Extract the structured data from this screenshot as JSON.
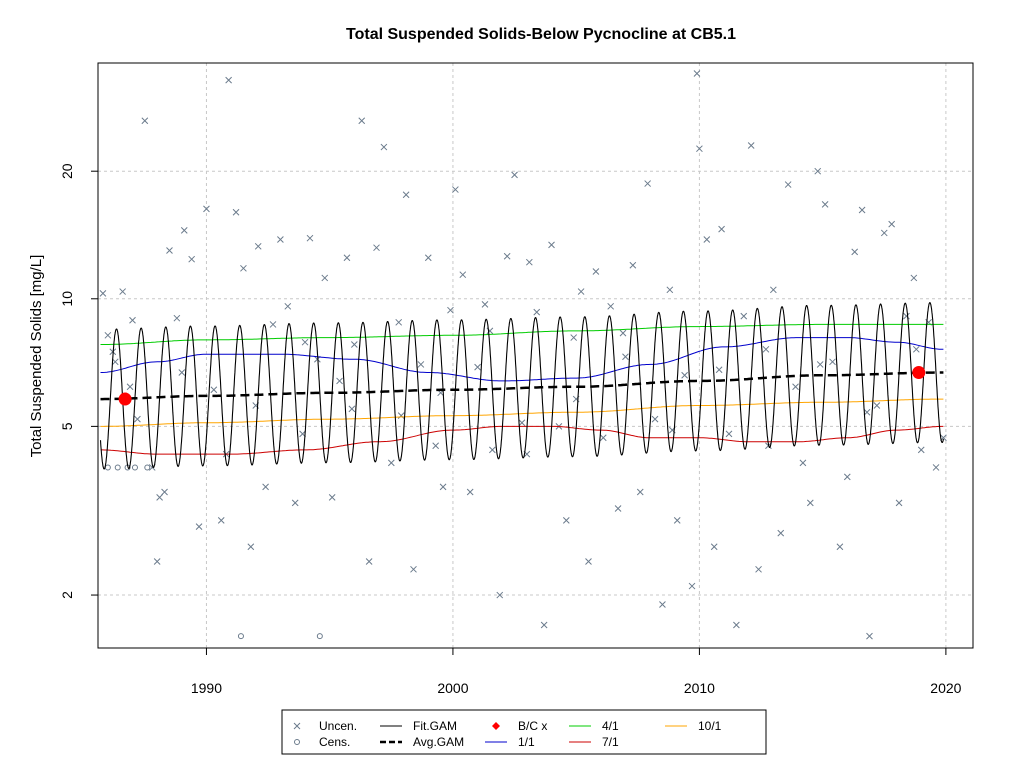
{
  "chart_data": {
    "type": "line",
    "title": "Total Suspended Solids-Below Pycnocline at CB5.1",
    "xlabel": "",
    "ylabel": "Total Suspended Solids [mg/L]",
    "xlim": [
      1985.6,
      2021.1
    ],
    "ylim": [
      1.5,
      36
    ],
    "y_scale": "log",
    "grid": true,
    "legend_position": "bottom",
    "x_ticks": [
      1990,
      2000,
      2010,
      2020
    ],
    "y_ticks": [
      2,
      5,
      10,
      20
    ],
    "x_tick_labels": [
      "1990",
      "2000",
      "2010",
      "2020"
    ],
    "y_tick_labels": [
      "2",
      "5",
      "10",
      "20"
    ],
    "legend": [
      {
        "label": "Uncen.",
        "symbol": "x",
        "color": "#6b7b8c"
      },
      {
        "label": "Cens.",
        "symbol": "circle",
        "color": "#6b7b8c"
      },
      {
        "label": "Fit.GAM",
        "symbol": "line",
        "color": "#000000"
      },
      {
        "label": "Avg.GAM",
        "symbol": "dashed",
        "color": "#000000"
      },
      {
        "label": "B/C x",
        "symbol": "diamond",
        "color": "#ff0000"
      },
      {
        "label": "1/1",
        "symbol": "line",
        "color": "#0000cc"
      },
      {
        "label": "4/1",
        "symbol": "line",
        "color": "#00cc00"
      },
      {
        "label": "7/1",
        "symbol": "line",
        "color": "#cc0000"
      },
      {
        "label": "10/1",
        "symbol": "line",
        "color": "#ffa500"
      }
    ],
    "series": [
      {
        "name": "Avg.GAM",
        "x": [
          1985.7,
          1990,
          1995,
          2000,
          2005,
          2010,
          2015,
          2019.9
        ],
        "y": [
          5.8,
          5.9,
          6.0,
          6.1,
          6.2,
          6.4,
          6.6,
          6.7
        ]
      },
      {
        "name": "1/1",
        "x": [
          1985.7,
          1988,
          1990,
          1993,
          1996,
          1999,
          2002,
          2005,
          2008,
          2011,
          2014,
          2016,
          2018,
          2019.9
        ],
        "y": [
          6.7,
          7.1,
          7.4,
          7.4,
          7.2,
          6.7,
          6.4,
          6.5,
          7.0,
          7.7,
          8.1,
          8.1,
          7.9,
          7.6
        ]
      },
      {
        "name": "4/1",
        "x": [
          1985.7,
          1990,
          1995,
          2000,
          2005,
          2010,
          2015,
          2019.9
        ],
        "y": [
          7.8,
          8.0,
          8.1,
          8.2,
          8.4,
          8.6,
          8.7,
          8.7
        ]
      },
      {
        "name": "7/1",
        "x": [
          1985.7,
          1988,
          1991,
          1994,
          1997,
          2000,
          2002,
          2004,
          2006,
          2008,
          2010,
          2012,
          2014,
          2016,
          2018,
          2019.9
        ],
        "y": [
          4.4,
          4.3,
          4.3,
          4.4,
          4.6,
          4.9,
          5.0,
          5.0,
          4.9,
          4.7,
          4.7,
          4.6,
          4.6,
          4.7,
          4.9,
          5.0
        ]
      },
      {
        "name": "10/1",
        "x": [
          1985.7,
          1990,
          1995,
          2000,
          2005,
          2010,
          2015,
          2019.9
        ],
        "y": [
          5.0,
          5.1,
          5.2,
          5.3,
          5.4,
          5.6,
          5.7,
          5.8
        ]
      },
      {
        "name": "Fit.GAM",
        "kind": "seasonal",
        "x_start": 1985.7,
        "x_end": 2019.9,
        "peak_phase": 0.35,
        "amplitude_log": 0.38
      }
    ],
    "points_bc": [
      {
        "x": 1986.7,
        "y": 5.8
      },
      {
        "x": 2018.9,
        "y": 6.7
      }
    ],
    "censored_points": [
      {
        "x": 1986.0,
        "y": 4.0
      },
      {
        "x": 1986.4,
        "y": 4.0
      },
      {
        "x": 1986.8,
        "y": 4.0
      },
      {
        "x": 1987.1,
        "y": 4.0
      },
      {
        "x": 1987.6,
        "y": 4.0
      },
      {
        "x": 1991.4,
        "y": 1.6
      },
      {
        "x": 1994.6,
        "y": 1.6
      }
    ],
    "uncensored_points": [
      {
        "x": 1985.8,
        "y": 10.3
      },
      {
        "x": 1986.0,
        "y": 8.2
      },
      {
        "x": 1986.3,
        "y": 7.1
      },
      {
        "x": 1986.6,
        "y": 10.4
      },
      {
        "x": 1986.9,
        "y": 6.2
      },
      {
        "x": 1987.2,
        "y": 5.2
      },
      {
        "x": 1987.5,
        "y": 26.3
      },
      {
        "x": 1987.8,
        "y": 4.0
      },
      {
        "x": 1988.0,
        "y": 2.4
      },
      {
        "x": 1988.3,
        "y": 3.5
      },
      {
        "x": 1988.5,
        "y": 13.0
      },
      {
        "x": 1988.8,
        "y": 9.0
      },
      {
        "x": 1989.1,
        "y": 14.5
      },
      {
        "x": 1989.4,
        "y": 12.4
      },
      {
        "x": 1989.7,
        "y": 2.9
      },
      {
        "x": 1990.0,
        "y": 16.3
      },
      {
        "x": 1990.3,
        "y": 6.1
      },
      {
        "x": 1990.6,
        "y": 3.0
      },
      {
        "x": 1990.9,
        "y": 32.8
      },
      {
        "x": 1991.2,
        "y": 16.0
      },
      {
        "x": 1991.5,
        "y": 11.8
      },
      {
        "x": 1991.8,
        "y": 2.6
      },
      {
        "x": 1992.1,
        "y": 13.3
      },
      {
        "x": 1992.4,
        "y": 3.6
      },
      {
        "x": 1992.7,
        "y": 8.7
      },
      {
        "x": 1993.0,
        "y": 13.8
      },
      {
        "x": 1993.3,
        "y": 9.6
      },
      {
        "x": 1993.6,
        "y": 3.3
      },
      {
        "x": 1993.9,
        "y": 4.8
      },
      {
        "x": 1994.2,
        "y": 13.9
      },
      {
        "x": 1994.5,
        "y": 7.2
      },
      {
        "x": 1994.8,
        "y": 11.2
      },
      {
        "x": 1995.1,
        "y": 3.4
      },
      {
        "x": 1995.4,
        "y": 6.4
      },
      {
        "x": 1995.7,
        "y": 12.5
      },
      {
        "x": 1996.0,
        "y": 7.8
      },
      {
        "x": 1996.3,
        "y": 26.3
      },
      {
        "x": 1996.6,
        "y": 2.4
      },
      {
        "x": 1996.9,
        "y": 13.2
      },
      {
        "x": 1997.2,
        "y": 22.8
      },
      {
        "x": 1997.5,
        "y": 4.1
      },
      {
        "x": 1997.8,
        "y": 8.8
      },
      {
        "x": 1998.1,
        "y": 17.6
      },
      {
        "x": 1998.4,
        "y": 2.3
      },
      {
        "x": 1998.7,
        "y": 7.0
      },
      {
        "x": 1999.0,
        "y": 12.5
      },
      {
        "x": 1999.3,
        "y": 4.5
      },
      {
        "x": 1999.6,
        "y": 3.6
      },
      {
        "x": 1999.9,
        "y": 9.4
      },
      {
        "x": 2000.1,
        "y": 18.1
      },
      {
        "x": 2000.4,
        "y": 11.4
      },
      {
        "x": 2000.7,
        "y": 3.5
      },
      {
        "x": 2001.0,
        "y": 6.9
      },
      {
        "x": 2001.3,
        "y": 9.7
      },
      {
        "x": 2001.6,
        "y": 4.4
      },
      {
        "x": 2001.9,
        "y": 2.0
      },
      {
        "x": 2002.2,
        "y": 12.6
      },
      {
        "x": 2002.5,
        "y": 19.6
      },
      {
        "x": 2002.8,
        "y": 5.1
      },
      {
        "x": 2003.1,
        "y": 12.2
      },
      {
        "x": 2003.4,
        "y": 9.3
      },
      {
        "x": 2003.7,
        "y": 1.7
      },
      {
        "x": 2004.0,
        "y": 13.4
      },
      {
        "x": 2004.3,
        "y": 5.0
      },
      {
        "x": 2004.6,
        "y": 3.0
      },
      {
        "x": 2004.9,
        "y": 8.1
      },
      {
        "x": 2005.2,
        "y": 10.4
      },
      {
        "x": 2005.5,
        "y": 2.4
      },
      {
        "x": 2005.8,
        "y": 11.6
      },
      {
        "x": 2006.1,
        "y": 4.7
      },
      {
        "x": 2006.4,
        "y": 9.6
      },
      {
        "x": 2006.7,
        "y": 3.2
      },
      {
        "x": 2007.0,
        "y": 7.3
      },
      {
        "x": 2007.3,
        "y": 12.0
      },
      {
        "x": 2007.6,
        "y": 3.5
      },
      {
        "x": 2007.9,
        "y": 18.7
      },
      {
        "x": 2008.2,
        "y": 5.2
      },
      {
        "x": 2008.5,
        "y": 1.9
      },
      {
        "x": 2008.8,
        "y": 10.5
      },
      {
        "x": 2009.1,
        "y": 3.0
      },
      {
        "x": 2009.4,
        "y": 6.6
      },
      {
        "x": 2009.7,
        "y": 2.1
      },
      {
        "x": 2009.9,
        "y": 34.0
      },
      {
        "x": 2010.0,
        "y": 22.6
      },
      {
        "x": 2010.3,
        "y": 13.8
      },
      {
        "x": 2010.6,
        "y": 2.6
      },
      {
        "x": 2010.9,
        "y": 14.6
      },
      {
        "x": 2011.2,
        "y": 4.8
      },
      {
        "x": 2011.5,
        "y": 1.7
      },
      {
        "x": 2011.8,
        "y": 9.1
      },
      {
        "x": 2012.1,
        "y": 23.0
      },
      {
        "x": 2012.4,
        "y": 2.3
      },
      {
        "x": 2012.7,
        "y": 7.6
      },
      {
        "x": 2013.0,
        "y": 10.5
      },
      {
        "x": 2013.3,
        "y": 2.8
      },
      {
        "x": 2013.6,
        "y": 18.6
      },
      {
        "x": 2013.9,
        "y": 6.2
      },
      {
        "x": 2014.2,
        "y": 4.1
      },
      {
        "x": 2014.5,
        "y": 3.3
      },
      {
        "x": 2014.8,
        "y": 20.0
      },
      {
        "x": 2015.1,
        "y": 16.7
      },
      {
        "x": 2015.4,
        "y": 7.1
      },
      {
        "x": 2015.7,
        "y": 2.6
      },
      {
        "x": 2016.0,
        "y": 3.8
      },
      {
        "x": 2016.3,
        "y": 12.9
      },
      {
        "x": 2016.6,
        "y": 16.2
      },
      {
        "x": 2016.9,
        "y": 1.6
      },
      {
        "x": 2017.2,
        "y": 5.6
      },
      {
        "x": 2017.5,
        "y": 14.3
      },
      {
        "x": 2017.8,
        "y": 15.0
      },
      {
        "x": 2018.1,
        "y": 3.3
      },
      {
        "x": 2018.4,
        "y": 9.1
      },
      {
        "x": 2018.7,
        "y": 11.2
      },
      {
        "x": 2019.0,
        "y": 4.4
      },
      {
        "x": 2019.3,
        "y": 8.8
      },
      {
        "x": 2019.6,
        "y": 4.0
      },
      {
        "x": 2019.9,
        "y": 4.7
      },
      {
        "x": 1986.2,
        "y": 7.5
      },
      {
        "x": 1987.0,
        "y": 8.9
      },
      {
        "x": 1988.1,
        "y": 3.4
      },
      {
        "x": 1989.0,
        "y": 6.7
      },
      {
        "x": 1990.8,
        "y": 4.3
      },
      {
        "x": 1992.0,
        "y": 5.6
      },
      {
        "x": 1994.0,
        "y": 7.9
      },
      {
        "x": 1995.9,
        "y": 5.5
      },
      {
        "x": 1997.9,
        "y": 5.3
      },
      {
        "x": 1999.5,
        "y": 6.0
      },
      {
        "x": 2001.5,
        "y": 8.4
      },
      {
        "x": 2003.0,
        "y": 4.3
      },
      {
        "x": 2005.0,
        "y": 5.8
      },
      {
        "x": 2006.9,
        "y": 8.3
      },
      {
        "x": 2008.9,
        "y": 4.9
      },
      {
        "x": 2010.8,
        "y": 6.8
      },
      {
        "x": 2012.8,
        "y": 4.5
      },
      {
        "x": 2014.9,
        "y": 7.0
      },
      {
        "x": 2016.8,
        "y": 5.4
      },
      {
        "x": 2018.8,
        "y": 7.6
      }
    ]
  }
}
